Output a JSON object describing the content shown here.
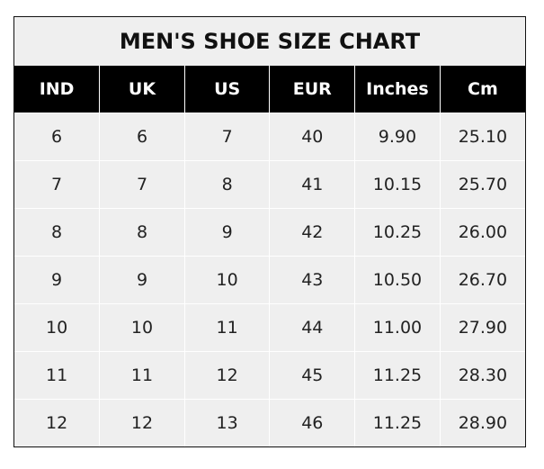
{
  "title": "MEN'S SHOE SIZE CHART",
  "columns": [
    "IND",
    "UK",
    "US",
    "EUR",
    "Inches",
    "Cm"
  ],
  "rows": [
    [
      "6",
      "6",
      "7",
      "40",
      "9.90",
      "25.10"
    ],
    [
      "7",
      "7",
      "8",
      "41",
      "10.15",
      "25.70"
    ],
    [
      "8",
      "8",
      "9",
      "42",
      "10.25",
      "26.00"
    ],
    [
      "9",
      "9",
      "10",
      "43",
      "10.50",
      "26.70"
    ],
    [
      "10",
      "10",
      "11",
      "44",
      "11.00",
      "27.90"
    ],
    [
      "11",
      "11",
      "12",
      "45",
      "11.25",
      "28.30"
    ],
    [
      "12",
      "12",
      "13",
      "46",
      "11.25",
      "28.90"
    ]
  ]
}
